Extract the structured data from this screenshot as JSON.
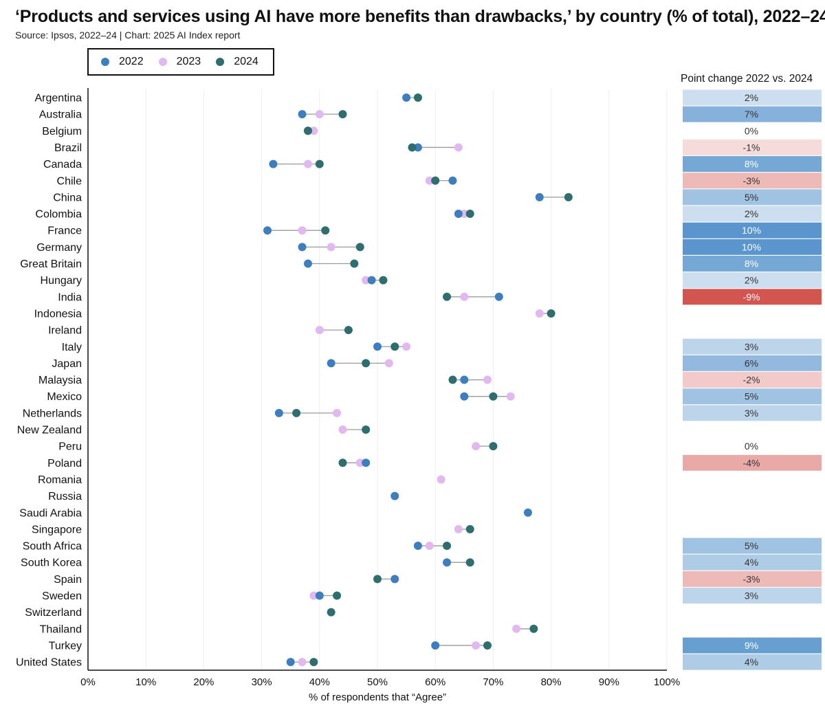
{
  "title": "‘Products and services using AI have more benefits than drawbacks,’ by country (% of total), 2022–24",
  "subtitle": "Source: Ipsos, 2022–24 | Chart: 2025 AI Index report",
  "legend": [
    {
      "label": "2022",
      "color": "#3d7ebf"
    },
    {
      "label": "2023",
      "color": "#e2b8f0"
    },
    {
      "label": "2024",
      "color": "#2e6e6e"
    }
  ],
  "change_header": "Point change 2022 vs. 2024",
  "chart_data": {
    "type": "scatter",
    "title": "‘Products and services using AI have more benefits than drawbacks,’ by country (% of total), 2022–24",
    "xlabel": "% of respondents that “Agree”",
    "ylabel": "",
    "xlim": [
      0,
      100
    ],
    "x_ticks": [
      "0%",
      "10%",
      "20%",
      "30%",
      "40%",
      "50%",
      "60%",
      "70%",
      "80%",
      "90%",
      "100%"
    ],
    "series_names": [
      "2022",
      "2023",
      "2024"
    ],
    "categories": [
      "Argentina",
      "Australia",
      "Belgium",
      "Brazil",
      "Canada",
      "Chile",
      "China",
      "Colombia",
      "France",
      "Germany",
      "Great Britain",
      "Hungary",
      "India",
      "Indonesia",
      "Ireland",
      "Italy",
      "Japan",
      "Malaysia",
      "Mexico",
      "Netherlands",
      "New Zealand",
      "Peru",
      "Poland",
      "Romania",
      "Russia",
      "Saudi Arabia",
      "Singapore",
      "South Africa",
      "South Korea",
      "Spain",
      "Sweden",
      "Switzerland",
      "Thailand",
      "Turkey",
      "United States"
    ],
    "series": [
      {
        "name": "2022",
        "values": [
          55,
          37,
          38,
          57,
          32,
          63,
          78,
          64,
          31,
          37,
          38,
          49,
          71,
          null,
          null,
          50,
          42,
          65,
          65,
          33,
          null,
          null,
          48,
          null,
          53,
          76,
          null,
          57,
          62,
          53,
          40,
          null,
          null,
          60,
          35
        ]
      },
      {
        "name": "2023",
        "values": [
          null,
          40,
          39,
          64,
          38,
          59,
          null,
          65,
          37,
          42,
          null,
          48,
          65,
          78,
          40,
          55,
          52,
          69,
          73,
          43,
          44,
          67,
          47,
          61,
          null,
          null,
          64,
          59,
          null,
          null,
          39,
          null,
          74,
          67,
          37
        ]
      },
      {
        "name": "2024",
        "values": [
          57,
          44,
          38,
          56,
          40,
          60,
          83,
          66,
          41,
          47,
          46,
          51,
          62,
          80,
          45,
          53,
          48,
          63,
          70,
          36,
          48,
          70,
          44,
          null,
          null,
          null,
          66,
          62,
          66,
          50,
          43,
          42,
          77,
          69,
          39
        ]
      }
    ],
    "point_change": [
      "2%",
      "7%",
      "0%",
      "-1%",
      "8%",
      "-3%",
      "5%",
      "2%",
      "10%",
      "10%",
      "8%",
      "2%",
      "-9%",
      "",
      "",
      "3%",
      "6%",
      "-2%",
      "5%",
      "3%",
      "",
      "0%",
      "-4%",
      "",
      "",
      "",
      "",
      "5%",
      "4%",
      "-3%",
      "3%",
      "",
      "",
      "9%",
      "4%"
    ],
    "point_change_values": [
      2,
      7,
      0,
      -1,
      8,
      -3,
      5,
      2,
      10,
      10,
      8,
      2,
      -9,
      null,
      null,
      3,
      6,
      -2,
      5,
      3,
      null,
      0,
      -4,
      null,
      null,
      null,
      null,
      5,
      4,
      -3,
      3,
      null,
      null,
      9,
      4
    ]
  }
}
